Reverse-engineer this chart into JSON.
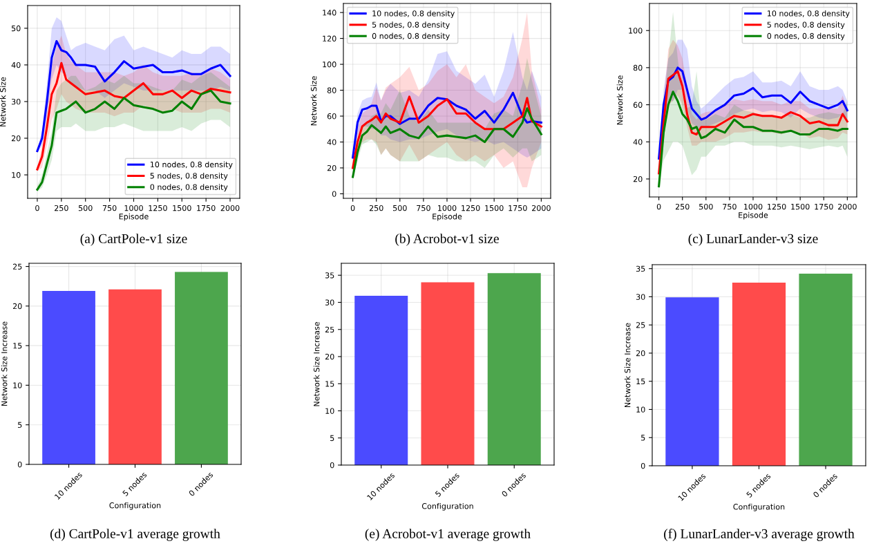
{
  "chart_data": [
    {
      "type": "line",
      "title": "(a) CartPole-v1 size",
      "xlabel": "Episode",
      "ylabel": "Network Size",
      "legend": "lower right",
      "grid": true,
      "xlim": [
        -100,
        2100
      ],
      "xticks": [
        0,
        250,
        500,
        750,
        1000,
        1250,
        1500,
        1750,
        2000
      ],
      "ylim": [
        3.6,
        56.2
      ],
      "yticks": [
        10,
        20,
        30,
        40,
        50
      ],
      "x": [
        0,
        50,
        100,
        150,
        200,
        250,
        300,
        350,
        400,
        500,
        600,
        700,
        800,
        900,
        1000,
        1100,
        1200,
        1300,
        1400,
        1500,
        1600,
        1700,
        1800,
        1900,
        2000
      ],
      "series": [
        {
          "name": "10 nodes, 0.8 density",
          "color": "#0000ff",
          "values": [
            16.5,
            20,
            30,
            42,
            46.5,
            44,
            43.5,
            42,
            40,
            40,
            39.5,
            35.5,
            38,
            41,
            39,
            39.5,
            40,
            38,
            38,
            38.5,
            37.5,
            37.5,
            39,
            40,
            37
          ],
          "upper": [
            17,
            22,
            35,
            50,
            53,
            52,
            48,
            44,
            45,
            46,
            45,
            44,
            47,
            48,
            44,
            45,
            44,
            43,
            42,
            44,
            43,
            43,
            45,
            45,
            43
          ],
          "lower": [
            16,
            18,
            26,
            36,
            40,
            38,
            37,
            35,
            34,
            33,
            33,
            31,
            33,
            35,
            34,
            33,
            33,
            33,
            33,
            33,
            33,
            33,
            33,
            34,
            33
          ]
        },
        {
          "name": "5 nodes, 0.8 density",
          "color": "#ff0000",
          "values": [
            11.5,
            15,
            23,
            32,
            35,
            40.5,
            36,
            35,
            34,
            32,
            32.5,
            33,
            31.5,
            31,
            33,
            35,
            32,
            32,
            33,
            31,
            33,
            32,
            33.5,
            33,
            32.5
          ],
          "upper": [
            12,
            18,
            28,
            40,
            45,
            48,
            43,
            41,
            40,
            38,
            38,
            38,
            38,
            37,
            38,
            40,
            38,
            37,
            37,
            37,
            38,
            37,
            39,
            38,
            36
          ],
          "lower": [
            11,
            12,
            18,
            25,
            28,
            32,
            30,
            29,
            28,
            27,
            27,
            27,
            26,
            27,
            27,
            29,
            28,
            27,
            28,
            27,
            27,
            27,
            28,
            28,
            27
          ]
        },
        {
          "name": "0 nodes, 0.8 density",
          "color": "#008000",
          "values": [
            6,
            8,
            13,
            18,
            27,
            27.5,
            28,
            29,
            30,
            27,
            28,
            30,
            28,
            31,
            29,
            28.5,
            28,
            27,
            27.5,
            30,
            28,
            32,
            33,
            30,
            29.5
          ],
          "upper": [
            7,
            10,
            16,
            22,
            33,
            35,
            36,
            37,
            37,
            33,
            34,
            36,
            35,
            37,
            35,
            35,
            34,
            33,
            33,
            36,
            35,
            37,
            38,
            36,
            34
          ],
          "lower": [
            5.5,
            6.5,
            10,
            14,
            22,
            23,
            23,
            23,
            24,
            22,
            22,
            23,
            23,
            24,
            23,
            22,
            22,
            22,
            22,
            23,
            22,
            24,
            25,
            25,
            23
          ]
        }
      ]
    },
    {
      "type": "line",
      "title": "(b) Acrobot-v1 size",
      "xlabel": "Episode",
      "ylabel": "Network Size",
      "legend": "upper left",
      "grid": true,
      "xlim": [
        -100,
        2100
      ],
      "xticks": [
        0,
        250,
        500,
        750,
        1000,
        1250,
        1500,
        1750,
        2000
      ],
      "ylim": [
        -3.5,
        147
      ],
      "yticks": [
        0,
        20,
        40,
        60,
        80,
        100,
        120,
        140
      ],
      "x": [
        0,
        50,
        100,
        150,
        200,
        250,
        300,
        350,
        400,
        500,
        600,
        700,
        800,
        900,
        1000,
        1100,
        1200,
        1300,
        1400,
        1500,
        1600,
        1700,
        1800,
        1850,
        1900,
        2000
      ],
      "series": [
        {
          "name": "10 nodes, 0.8 density",
          "color": "#0000ff",
          "values": [
            28,
            55,
            65,
            66,
            68,
            68,
            56,
            60,
            60,
            54,
            58,
            58,
            68,
            74,
            73,
            68,
            65,
            58,
            64,
            55,
            65,
            78,
            60,
            55,
            56,
            55
          ],
          "upper": [
            30,
            62,
            72,
            74,
            75,
            86,
            72,
            80,
            85,
            78,
            80,
            75,
            88,
            108,
            110,
            95,
            90,
            85,
            92,
            75,
            95,
            125,
            90,
            80,
            95,
            75
          ],
          "lower": [
            25,
            45,
            52,
            52,
            50,
            50,
            45,
            45,
            42,
            40,
            42,
            42,
            45,
            48,
            50,
            45,
            42,
            40,
            42,
            38,
            40,
            35,
            30,
            28,
            30,
            35
          ]
        },
        {
          "name": "5 nodes, 0.8 density",
          "color": "#ff0000",
          "values": [
            20,
            40,
            52,
            55,
            57,
            60,
            55,
            62,
            58,
            55,
            75,
            55,
            60,
            68,
            73,
            62,
            62,
            55,
            50,
            50,
            50,
            55,
            60,
            74,
            56,
            52
          ],
          "upper": [
            22,
            50,
            62,
            65,
            70,
            82,
            72,
            82,
            85,
            90,
            98,
            80,
            85,
            95,
            100,
            90,
            100,
            80,
            75,
            70,
            75,
            90,
            120,
            140,
            95,
            65
          ],
          "lower": [
            18,
            32,
            40,
            42,
            42,
            40,
            30,
            35,
            30,
            25,
            38,
            25,
            30,
            35,
            40,
            30,
            25,
            30,
            25,
            30,
            20,
            25,
            5,
            5,
            20,
            40
          ]
        },
        {
          "name": "0 nodes, 0.8 density",
          "color": "#008000",
          "values": [
            13,
            32,
            45,
            48,
            53,
            50,
            47,
            52,
            47,
            50,
            45,
            43,
            52,
            44,
            45,
            44,
            43,
            45,
            40,
            50,
            50,
            44,
            55,
            66,
            58,
            46
          ],
          "upper": [
            15,
            40,
            52,
            55,
            60,
            62,
            62,
            70,
            65,
            80,
            60,
            55,
            65,
            55,
            55,
            55,
            55,
            55,
            50,
            62,
            65,
            60,
            85,
            105,
            88,
            60
          ],
          "lower": [
            12,
            25,
            38,
            40,
            42,
            38,
            30,
            35,
            30,
            25,
            25,
            25,
            30,
            28,
            28,
            25,
            25,
            25,
            20,
            30,
            35,
            28,
            35,
            35,
            25,
            30
          ]
        }
      ]
    },
    {
      "type": "line",
      "title": "(c) LunarLander-v3 size",
      "xlabel": "Episode",
      "ylabel": "Network Size",
      "legend": "upper right",
      "grid": true,
      "xlim": [
        -100,
        2100
      ],
      "xticks": [
        0,
        250,
        500,
        750,
        1000,
        1250,
        1500,
        1750,
        2000
      ],
      "ylim": [
        10.3,
        114.6
      ],
      "yticks": [
        20,
        40,
        60,
        80,
        100
      ],
      "x": [
        0,
        50,
        100,
        150,
        200,
        250,
        300,
        350,
        400,
        450,
        500,
        600,
        700,
        800,
        900,
        1000,
        1100,
        1200,
        1300,
        1400,
        1500,
        1600,
        1700,
        1800,
        1900,
        1950,
        2000
      ],
      "series": [
        {
          "name": "10 nodes, 0.8 density",
          "color": "#0000ff",
          "values": [
            31,
            60,
            73,
            75,
            80,
            78,
            68,
            58,
            55,
            52,
            53,
            57,
            60,
            65,
            66,
            69,
            64,
            65,
            65,
            61,
            67,
            62,
            60,
            58,
            60,
            62,
            57
          ],
          "upper": [
            32,
            68,
            85,
            88,
            95,
            95,
            90,
            70,
            62,
            58,
            60,
            65,
            70,
            74,
            75,
            78,
            72,
            72,
            73,
            70,
            78,
            70,
            68,
            68,
            70,
            68,
            62
          ],
          "lower": [
            30,
            50,
            62,
            62,
            68,
            68,
            58,
            50,
            48,
            47,
            48,
            50,
            52,
            55,
            57,
            58,
            56,
            57,
            56,
            53,
            58,
            55,
            53,
            52,
            53,
            55,
            52
          ]
        },
        {
          "name": "5 nodes, 0.8 density",
          "color": "#ff0000",
          "values": [
            23,
            50,
            74,
            76,
            78,
            70,
            55,
            45,
            44,
            48,
            48,
            48,
            51,
            54,
            53,
            55,
            54,
            54,
            53,
            56,
            54,
            50,
            51,
            49,
            49,
            55,
            51
          ],
          "upper": [
            24,
            62,
            90,
            95,
            92,
            85,
            70,
            55,
            52,
            55,
            56,
            57,
            60,
            63,
            62,
            63,
            62,
            62,
            60,
            62,
            62,
            58,
            58,
            58,
            58,
            65,
            58
          ],
          "lower": [
            22,
            40,
            60,
            62,
            65,
            60,
            48,
            38,
            38,
            40,
            40,
            40,
            42,
            45,
            45,
            46,
            45,
            45,
            44,
            46,
            45,
            42,
            43,
            41,
            42,
            45,
            44
          ]
        },
        {
          "name": "0 nodes, 0.8 density",
          "color": "#008000",
          "values": [
            16,
            45,
            60,
            67,
            62,
            55,
            52,
            47,
            48,
            42,
            43,
            47,
            45,
            52,
            48,
            48,
            46,
            46,
            45,
            46,
            44,
            44,
            47,
            47,
            46,
            47,
            47
          ],
          "upper": [
            17,
            60,
            85,
            110,
            85,
            65,
            58,
            60,
            78,
            52,
            52,
            55,
            53,
            60,
            57,
            56,
            54,
            54,
            53,
            55,
            53,
            53,
            55,
            56,
            55,
            55,
            62
          ],
          "lower": [
            15,
            30,
            35,
            40,
            40,
            38,
            30,
            22,
            25,
            32,
            32,
            38,
            38,
            40,
            40,
            38,
            38,
            38,
            37,
            38,
            37,
            36,
            37,
            38,
            37,
            38,
            32
          ]
        }
      ]
    },
    {
      "type": "bar",
      "title": "(d) CartPole-v1 average growth",
      "xlabel": "Configuration",
      "ylabel": "Network Size Increase",
      "grid": true,
      "categories": [
        "10 nodes",
        "5 nodes",
        "0 nodes"
      ],
      "values": [
        21.9,
        22.1,
        24.3
      ],
      "colors": [
        "#4b4bff",
        "#ff4b4b",
        "#4da64d"
      ],
      "ylim": [
        0,
        25.4
      ],
      "yticks": [
        0,
        5,
        10,
        15,
        20,
        25
      ]
    },
    {
      "type": "bar",
      "title": "(e) Acrobot-v1 average growth",
      "xlabel": "Configuration",
      "ylabel": "Network Size Increase",
      "grid": true,
      "categories": [
        "10 nodes",
        "5 nodes",
        "0 nodes"
      ],
      "values": [
        31.2,
        33.7,
        35.4
      ],
      "colors": [
        "#4b4bff",
        "#ff4b4b",
        "#4da64d"
      ],
      "ylim": [
        0,
        37.2
      ],
      "yticks": [
        0,
        5,
        10,
        15,
        20,
        25,
        30,
        35
      ]
    },
    {
      "type": "bar",
      "title": "(f) LunarLander-v3 average growth",
      "xlabel": "Configuration",
      "ylabel": "Network Size Increase",
      "grid": true,
      "categories": [
        "10 nodes",
        "5 nodes",
        "0 nodes"
      ],
      "values": [
        29.9,
        32.5,
        34.1
      ],
      "colors": [
        "#4b4bff",
        "#ff4b4b",
        "#4da64d"
      ],
      "ylim": [
        0,
        35.7
      ],
      "yticks": [
        0,
        5,
        10,
        15,
        20,
        25,
        30,
        35
      ]
    }
  ]
}
